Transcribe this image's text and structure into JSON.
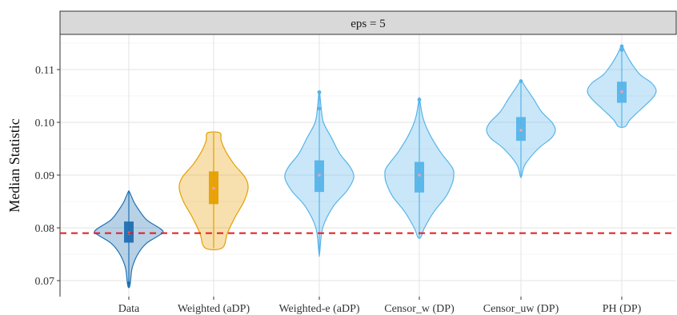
{
  "chart_data": {
    "type": "violin",
    "facet_label": "eps = 5",
    "ylabel": "Median Statistic",
    "xlabel": "",
    "ylim": [
      0.0665,
      0.1165
    ],
    "y_ticks": [
      0.07,
      0.08,
      0.09,
      0.1,
      0.11
    ],
    "y_tick_labels": [
      "0.07",
      "0.08",
      "0.09",
      "0.10",
      "0.11"
    ],
    "reference_line": {
      "y": 0.079,
      "color": "#e31a1c",
      "style": "dashed"
    },
    "grid": true,
    "categories": [
      "Data",
      "Weighted (aDP)",
      "Weighted-e (aDP)",
      "Censor_w (DP)",
      "Censor_uw (DP)",
      "PH (DP)"
    ],
    "series": [
      {
        "category": "Data",
        "color": "#1f6fb2",
        "min": 0.0688,
        "q1": 0.0772,
        "median": 0.079,
        "q3": 0.0812,
        "max": 0.0868,
        "outliers": [
          0.0695
        ],
        "density": [
          [
            0.0688,
            0.02
          ],
          [
            0.07,
            0.05
          ],
          [
            0.0725,
            0.1
          ],
          [
            0.075,
            0.26
          ],
          [
            0.077,
            0.5
          ],
          [
            0.0785,
            0.86
          ],
          [
            0.0792,
            1.0
          ],
          [
            0.08,
            0.88
          ],
          [
            0.0815,
            0.52
          ],
          [
            0.0835,
            0.28
          ],
          [
            0.085,
            0.14
          ],
          [
            0.0868,
            0.02
          ]
        ]
      },
      {
        "category": "Weighted (aDP)",
        "color": "#e69f00",
        "min": 0.0762,
        "q1": 0.0845,
        "median": 0.0875,
        "q3": 0.0907,
        "max": 0.098,
        "outliers": [],
        "density": [
          [
            0.0762,
            0.25
          ],
          [
            0.079,
            0.4
          ],
          [
            0.082,
            0.62
          ],
          [
            0.085,
            0.88
          ],
          [
            0.0875,
            1.0
          ],
          [
            0.0895,
            0.92
          ],
          [
            0.092,
            0.6
          ],
          [
            0.0945,
            0.35
          ],
          [
            0.0965,
            0.22
          ],
          [
            0.098,
            0.18
          ]
        ]
      },
      {
        "category": "Weighted-e (aDP)",
        "color": "#56b4e9",
        "min": 0.0752,
        "q1": 0.0868,
        "median": 0.09,
        "q3": 0.0928,
        "max": 0.1057,
        "outliers": [
          0.1026,
          0.1057
        ],
        "density": [
          [
            0.0752,
            0.01
          ],
          [
            0.08,
            0.1
          ],
          [
            0.084,
            0.4
          ],
          [
            0.087,
            0.8
          ],
          [
            0.0895,
            1.0
          ],
          [
            0.0915,
            0.9
          ],
          [
            0.094,
            0.6
          ],
          [
            0.097,
            0.36
          ],
          [
            0.1,
            0.12
          ],
          [
            0.103,
            0.05
          ],
          [
            0.1057,
            0.01
          ]
        ]
      },
      {
        "category": "Censor_w (DP)",
        "color": "#56b4e9",
        "min": 0.0782,
        "q1": 0.0867,
        "median": 0.09,
        "q3": 0.0925,
        "max": 0.1043,
        "outliers": [
          0.1043
        ],
        "density": [
          [
            0.0782,
            0.04
          ],
          [
            0.08,
            0.15
          ],
          [
            0.083,
            0.42
          ],
          [
            0.086,
            0.78
          ],
          [
            0.0885,
            0.96
          ],
          [
            0.09,
            1.0
          ],
          [
            0.0915,
            0.95
          ],
          [
            0.0945,
            0.6
          ],
          [
            0.098,
            0.28
          ],
          [
            0.101,
            0.1
          ],
          [
            0.1043,
            0.01
          ]
        ]
      },
      {
        "category": "Censor_uw (DP)",
        "color": "#56b4e9",
        "min": 0.0898,
        "q1": 0.0965,
        "median": 0.0985,
        "q3": 0.101,
        "max": 0.1078,
        "outliers": [
          0.1078
        ],
        "density": [
          [
            0.0898,
            0.02
          ],
          [
            0.092,
            0.12
          ],
          [
            0.095,
            0.5
          ],
          [
            0.097,
            0.88
          ],
          [
            0.0985,
            1.0
          ],
          [
            0.1,
            0.9
          ],
          [
            0.102,
            0.6
          ],
          [
            0.1045,
            0.36
          ],
          [
            0.1065,
            0.15
          ],
          [
            0.1078,
            0.02
          ]
        ]
      },
      {
        "category": "PH (DP)",
        "color": "#56b4e9",
        "min": 0.0992,
        "q1": 0.1037,
        "median": 0.1058,
        "q3": 0.1077,
        "max": 0.1144,
        "outliers": [
          0.1137,
          0.1144
        ],
        "density": [
          [
            0.0992,
            0.1
          ],
          [
            0.1005,
            0.24
          ],
          [
            0.1025,
            0.56
          ],
          [
            0.1045,
            0.88
          ],
          [
            0.106,
            1.0
          ],
          [
            0.1075,
            0.86
          ],
          [
            0.109,
            0.54
          ],
          [
            0.111,
            0.3
          ],
          [
            0.113,
            0.12
          ],
          [
            0.1144,
            0.02
          ]
        ]
      }
    ]
  }
}
